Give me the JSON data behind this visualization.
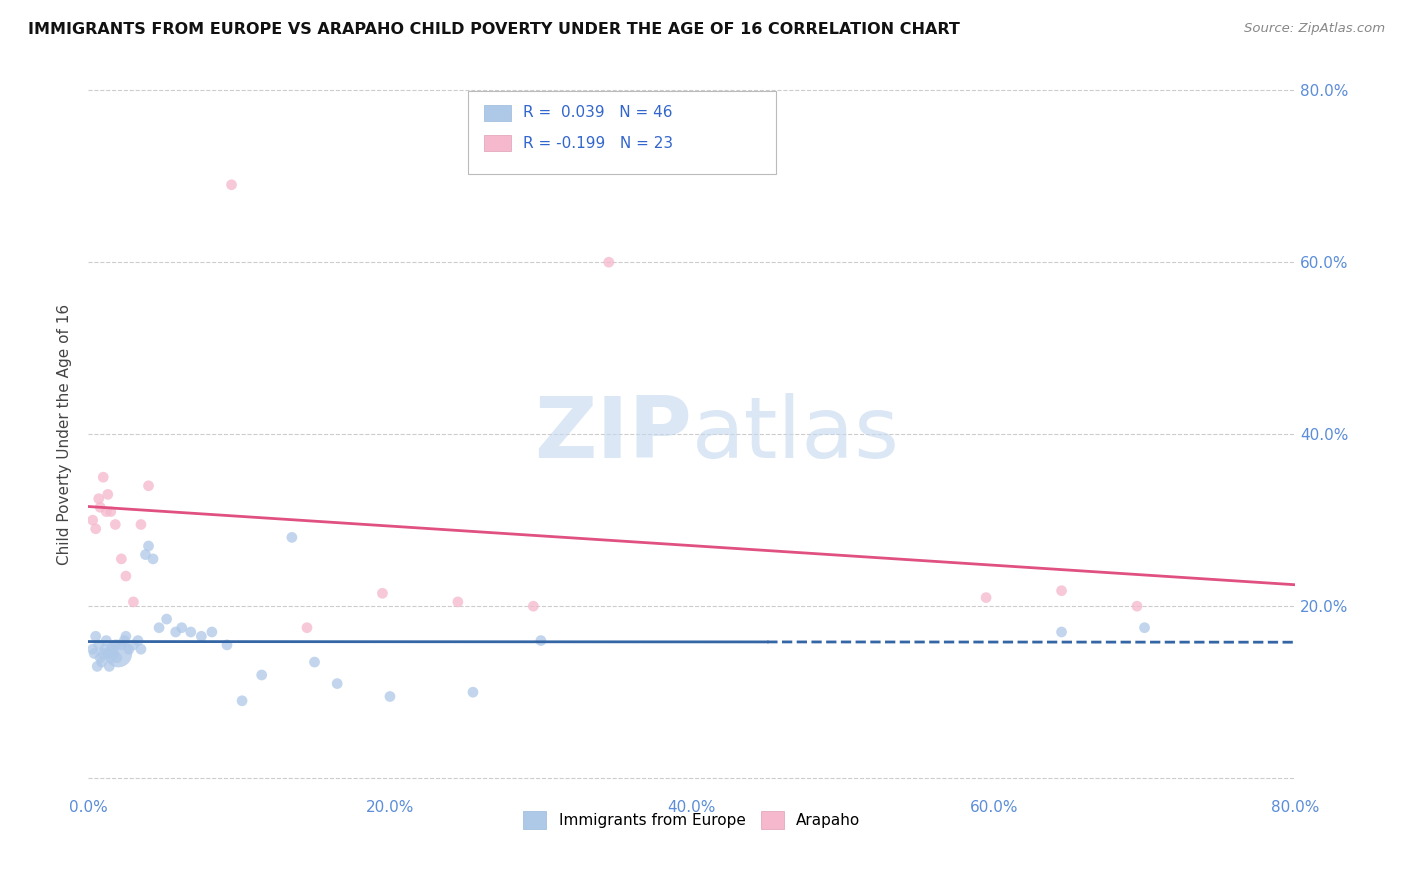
{
  "title": "IMMIGRANTS FROM EUROPE VS ARAPAHO CHILD POVERTY UNDER THE AGE OF 16 CORRELATION CHART",
  "source": "Source: ZipAtlas.com",
  "ylabel": "Child Poverty Under the Age of 16",
  "xlim": [
    0.0,
    0.8
  ],
  "ylim": [
    -0.02,
    0.82
  ],
  "xtick_labels": [
    "0.0%",
    "",
    "20.0%",
    "",
    "40.0%",
    "",
    "60.0%",
    "",
    "80.0%"
  ],
  "xtick_vals": [
    0.0,
    0.1,
    0.2,
    0.3,
    0.4,
    0.5,
    0.6,
    0.7,
    0.8
  ],
  "ytick_vals": [
    0.0,
    0.2,
    0.4,
    0.6,
    0.8
  ],
  "ytick_labels_right": [
    "",
    "20.0%",
    "40.0%",
    "60.0%",
    "80.0%"
  ],
  "grid_color": "#cccccc",
  "background_color": "#ffffff",
  "blue_color": "#aec8e8",
  "pink_color": "#f5b8cc",
  "blue_line_color": "#3465a4",
  "pink_line_color": "#e05080",
  "legend_blue_label": "Immigrants from Europe",
  "legend_pink_label": "Arapaho",
  "R_blue": "0.039",
  "N_blue": "46",
  "R_pink": "-0.199",
  "N_pink": "23",
  "blue_scatter_x": [
    0.003,
    0.004,
    0.005,
    0.006,
    0.007,
    0.008,
    0.009,
    0.01,
    0.011,
    0.012,
    0.013,
    0.014,
    0.015,
    0.016,
    0.017,
    0.018,
    0.019,
    0.02,
    0.022,
    0.024,
    0.025,
    0.027,
    0.03,
    0.033,
    0.035,
    0.038,
    0.04,
    0.043,
    0.047,
    0.052,
    0.058,
    0.062,
    0.068,
    0.075,
    0.082,
    0.092,
    0.102,
    0.115,
    0.135,
    0.15,
    0.165,
    0.2,
    0.255,
    0.3,
    0.645,
    0.7
  ],
  "blue_scatter_y": [
    0.15,
    0.145,
    0.165,
    0.13,
    0.155,
    0.14,
    0.135,
    0.145,
    0.15,
    0.16,
    0.145,
    0.13,
    0.14,
    0.15,
    0.145,
    0.155,
    0.14,
    0.145,
    0.155,
    0.16,
    0.165,
    0.15,
    0.155,
    0.16,
    0.15,
    0.26,
    0.27,
    0.255,
    0.175,
    0.185,
    0.17,
    0.175,
    0.17,
    0.165,
    0.17,
    0.155,
    0.09,
    0.12,
    0.28,
    0.135,
    0.11,
    0.095,
    0.1,
    0.16,
    0.17,
    0.175
  ],
  "blue_scatter_size": [
    60,
    60,
    60,
    60,
    60,
    60,
    60,
    60,
    60,
    60,
    60,
    60,
    60,
    60,
    60,
    60,
    60,
    400,
    60,
    60,
    60,
    60,
    60,
    60,
    60,
    60,
    60,
    60,
    60,
    60,
    60,
    60,
    60,
    60,
    60,
    60,
    60,
    60,
    60,
    60,
    60,
    60,
    60,
    60,
    60,
    60
  ],
  "pink_scatter_x": [
    0.003,
    0.005,
    0.007,
    0.008,
    0.01,
    0.012,
    0.013,
    0.015,
    0.018,
    0.022,
    0.025,
    0.03,
    0.035,
    0.04,
    0.095,
    0.145,
    0.195,
    0.245,
    0.295,
    0.345,
    0.595,
    0.645,
    0.695
  ],
  "pink_scatter_y": [
    0.3,
    0.29,
    0.325,
    0.315,
    0.35,
    0.31,
    0.33,
    0.31,
    0.295,
    0.255,
    0.235,
    0.205,
    0.295,
    0.34,
    0.69,
    0.175,
    0.215,
    0.205,
    0.2,
    0.6,
    0.21,
    0.218,
    0.2
  ],
  "pink_scatter_size": [
    60,
    60,
    60,
    60,
    60,
    60,
    60,
    60,
    60,
    60,
    60,
    60,
    60,
    60,
    60,
    60,
    60,
    60,
    60,
    60,
    60,
    60,
    60
  ]
}
